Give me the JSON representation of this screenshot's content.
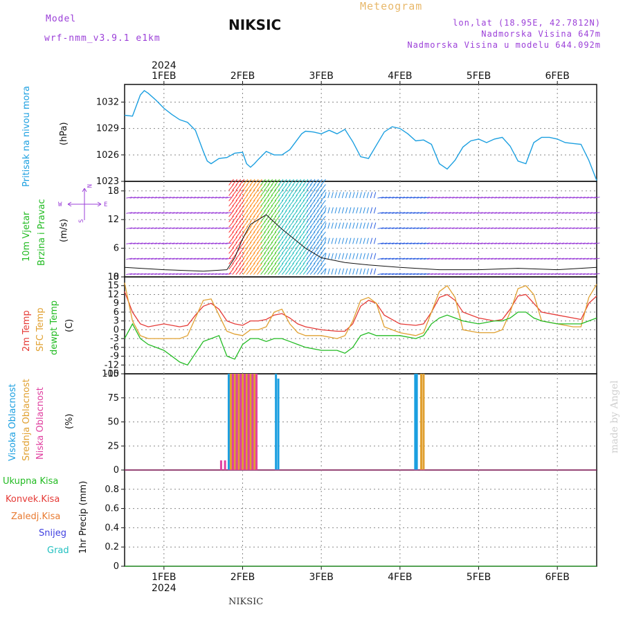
{
  "header": {
    "model_label": "Model",
    "model_name": "wrf-nmm_v3.9.1 e1km",
    "station": "NIKSIC",
    "meteogram": "Meteogram",
    "coords": "lon,lat (18.95E, 42.7812N)",
    "altitude": "Nadmorska Visina 647m",
    "model_altitude": "Nadmorska Visina u modelu 644.092m"
  },
  "top_axis": {
    "year": "2024",
    "days": [
      "1FEB",
      "2FEB",
      "3FEB",
      "4FEB",
      "5FEB",
      "6FEB"
    ]
  },
  "bottom_axis": {
    "year": "2024",
    "days": [
      "1FEB",
      "2FEB",
      "3FEB",
      "4FEB",
      "5FEB",
      "6FEB"
    ]
  },
  "footer_station": "NIKSIC",
  "watermark": "made by Angel",
  "panels": {
    "pressure": {
      "title": "Pritisak na nivou mora",
      "unit": "(hPa)"
    },
    "wind": {
      "title1": "10m Vjetar",
      "title2": "Brzina i Pravac",
      "unit": "(m/s)",
      "compass": {
        "n": "N",
        "w": "W",
        "e": "E",
        "s": "S"
      }
    },
    "temp": {
      "t2m": "2m Temp",
      "sfc": "SFC Temp",
      "dew": "dewpt Temp",
      "unit": "(C)"
    },
    "cloud": {
      "high": "Visoka Oblacnost",
      "mid": "Srednja Oblacnost",
      "low": "Niska Oblacnost",
      "unit": "(%)"
    },
    "precip": {
      "total": "Ukupna Kisa",
      "conv": "Konvek.Kisa",
      "frozen": "Zaledj.Kisa",
      "snow": "Snijeg",
      "hail": "Grad",
      "axis": "1hr Precip (mm)"
    }
  },
  "colors": {
    "pressure": "#1b9fe0",
    "t2m": "#e53935",
    "sfc": "#e0a030",
    "dew": "#22bb22",
    "high": "#1b9fe0",
    "mid": "#e0a030",
    "low": "#e040a0",
    "violet": "#9b3fd8",
    "title_orange": "#e8b86a"
  },
  "chart_data": [
    {
      "type": "line",
      "name": "pressure",
      "x_start_day": 0.5,
      "x_end_day": 6.5,
      "ylim": [
        1023,
        1034
      ],
      "yticks": [
        1023,
        1026,
        1029,
        1032
      ],
      "grid": true,
      "x": [
        0.5,
        0.6,
        0.7,
        0.75,
        0.8,
        0.9,
        1.0,
        1.1,
        1.2,
        1.3,
        1.4,
        1.5,
        1.55,
        1.6,
        1.7,
        1.8,
        1.9,
        2.0,
        2.05,
        2.1,
        2.15,
        2.2,
        2.3,
        2.4,
        2.5,
        2.6,
        2.7,
        2.75,
        2.8,
        2.9,
        3.0,
        3.1,
        3.2,
        3.3,
        3.4,
        3.5,
        3.6,
        3.7,
        3.8,
        3.9,
        4.0,
        4.1,
        4.2,
        4.3,
        4.4,
        4.5,
        4.6,
        4.7,
        4.8,
        4.9,
        5.0,
        5.1,
        5.2,
        5.3,
        5.4,
        5.5,
        5.6,
        5.7,
        5.8,
        5.9,
        6.0,
        6.1,
        6.2,
        6.3,
        6.4,
        6.5
      ],
      "y": [
        1030.5,
        1030.4,
        1032.8,
        1033.3,
        1033.0,
        1032.2,
        1031.3,
        1030.6,
        1030.0,
        1029.7,
        1028.8,
        1026.4,
        1025.3,
        1025.0,
        1025.6,
        1025.7,
        1026.2,
        1026.3,
        1025.0,
        1024.6,
        1025.0,
        1025.5,
        1026.4,
        1026.0,
        1026.0,
        1026.6,
        1027.8,
        1028.4,
        1028.7,
        1028.6,
        1028.4,
        1028.8,
        1028.4,
        1028.9,
        1027.5,
        1025.8,
        1025.6,
        1027.1,
        1028.6,
        1029.2,
        1029.0,
        1028.4,
        1027.6,
        1027.7,
        1027.2,
        1025.0,
        1024.4,
        1025.4,
        1026.9,
        1027.6,
        1027.8,
        1027.4,
        1027.8,
        1028.0,
        1027.0,
        1025.3,
        1025.0,
        1027.4,
        1028.0,
        1028.0,
        1027.8,
        1027.4,
        1027.3,
        1027.2,
        1025.4,
        1023.1
      ],
      "ylabel": "(hPa)"
    },
    {
      "type": "line",
      "name": "wind",
      "ylim": [
        0,
        20
      ],
      "yticks": [
        0,
        6,
        12,
        18
      ],
      "grid": true,
      "x": [
        0.5,
        1.0,
        1.5,
        1.8,
        1.9,
        2.0,
        2.1,
        2.3,
        2.5,
        2.8,
        3.0,
        3.3,
        3.6,
        4.0,
        4.5,
        5.0,
        5.5,
        6.0,
        6.5
      ],
      "y": [
        2.0,
        1.5,
        1.2,
        1.5,
        4.0,
        8.0,
        11.0,
        13.0,
        10.0,
        6.0,
        4.0,
        3.0,
        2.5,
        2.0,
        1.5,
        1.5,
        1.8,
        1.5,
        2.0
      ],
      "ylabel": "(m/s)"
    },
    {
      "type": "line",
      "name": "temperature",
      "ylim": [
        -15,
        18
      ],
      "yticks": [
        -15,
        -12,
        -9,
        -6,
        -3,
        0,
        3,
        6,
        9,
        12,
        15,
        18
      ],
      "grid": true,
      "x": [
        0.5,
        0.6,
        0.7,
        0.8,
        1.0,
        1.2,
        1.3,
        1.4,
        1.5,
        1.6,
        1.7,
        1.8,
        1.9,
        2.0,
        2.1,
        2.2,
        2.3,
        2.4,
        2.5,
        2.6,
        2.7,
        2.8,
        3.0,
        3.2,
        3.3,
        3.4,
        3.5,
        3.6,
        3.7,
        3.8,
        4.0,
        4.2,
        4.3,
        4.4,
        4.5,
        4.6,
        4.7,
        4.8,
        5.0,
        5.2,
        5.3,
        5.4,
        5.5,
        5.6,
        5.7,
        5.8,
        6.0,
        6.2,
        6.3,
        6.4,
        6.5
      ],
      "series": [
        {
          "name": "2m Temp",
          "values": [
            13,
            6,
            2,
            1,
            2,
            1,
            1.5,
            5,
            8,
            9,
            7,
            3,
            2,
            1.5,
            3,
            3,
            3.5,
            5,
            5.5,
            4,
            2,
            1,
            0,
            -0.5,
            -0.5,
            2,
            8,
            10,
            9,
            5,
            2,
            1.5,
            2,
            6,
            11,
            12,
            10,
            6,
            4,
            3,
            3.5,
            7,
            11.5,
            12,
            9,
            6,
            5,
            4,
            3.5,
            9,
            11.5
          ]
        },
        {
          "name": "SFC Temp",
          "values": [
            16,
            3,
            -2,
            -3,
            -3,
            -3,
            -2,
            4,
            10,
            10.5,
            5,
            -0.5,
            -1.5,
            -2,
            0,
            0,
            1,
            6,
            7,
            2,
            -1,
            -2,
            -2,
            -3,
            -2,
            3,
            10,
            11,
            9,
            1,
            -1,
            -2,
            -1,
            6,
            13,
            15,
            11,
            0,
            -1,
            -1,
            0,
            6,
            14,
            15,
            12,
            3,
            2,
            1,
            1,
            11,
            15.5
          ]
        },
        {
          "name": "dewpt Temp",
          "values": [
            -3,
            2,
            -3,
            -5,
            -7,
            -11,
            -12,
            -8,
            -4,
            -3,
            -2,
            -9,
            -10,
            -5,
            -3,
            -3,
            -4,
            -3,
            -3,
            -4,
            -5,
            -6,
            -7,
            -7,
            -8,
            -6,
            -2,
            -1,
            -2,
            -2,
            -2,
            -3,
            -2,
            2,
            4,
            5,
            4,
            3,
            2,
            3,
            3,
            4,
            6,
            6,
            4,
            3,
            2,
            2,
            2,
            3,
            4
          ]
        }
      ],
      "ylabel": "(C)"
    },
    {
      "type": "bar",
      "name": "cloud",
      "ylim": [
        0,
        100
      ],
      "yticks": [
        0,
        25,
        50,
        75,
        100
      ],
      "grid": true,
      "series": [
        {
          "name": "Visoka Oblacnost",
          "x": [
            1.85,
            1.9,
            1.95,
            2.0,
            2.05,
            2.1,
            2.15,
            2.45,
            2.48,
            4.22,
            4.24
          ],
          "values": [
            100,
            100,
            100,
            100,
            100,
            100,
            100,
            100,
            95,
            100,
            100
          ]
        },
        {
          "name": "Srednja Oblacnost",
          "x": [
            1.85,
            1.9,
            1.95,
            2.0,
            2.05,
            2.1,
            2.15,
            4.27,
            4.3
          ],
          "values": [
            100,
            100,
            100,
            100,
            100,
            100,
            100,
            100,
            100
          ]
        },
        {
          "name": "Niska Oblacnost",
          "x": [
            1.7,
            1.75,
            1.85,
            1.9,
            1.95,
            2.0,
            2.05,
            2.1,
            2.15
          ],
          "values": [
            10,
            10,
            100,
            100,
            100,
            100,
            100,
            100,
            100
          ]
        }
      ],
      "ylabel": "(%)"
    },
    {
      "type": "line",
      "name": "precip",
      "ylim": [
        0,
        1.0
      ],
      "yticks": [
        0,
        0.2,
        0.4,
        0.6,
        0.8
      ],
      "grid": true,
      "x": [
        0.5,
        6.5
      ],
      "y": [
        0,
        0
      ],
      "ylabel": "1hr Precip (mm)"
    }
  ]
}
